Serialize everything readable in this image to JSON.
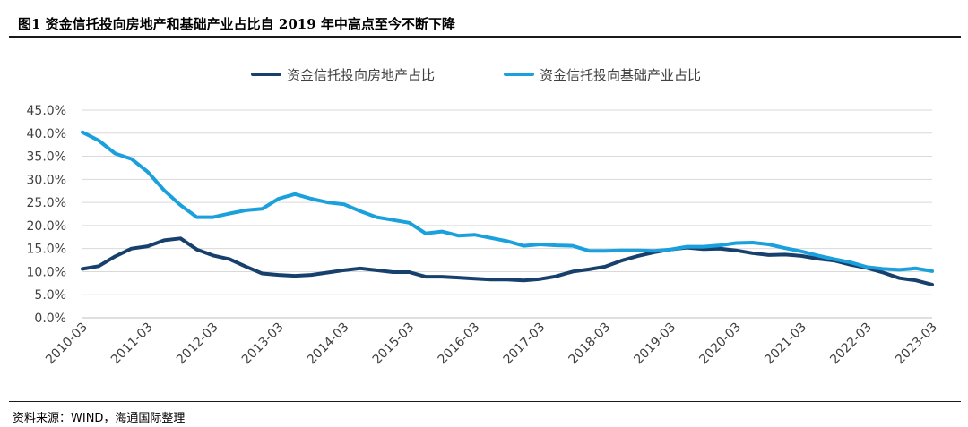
{
  "header": {
    "title": "图1  资金信托投向房地产和基础产业占比自 2019 年中高点至今不断下降"
  },
  "footer": {
    "source": "资料来源：WIND，海通国际整理"
  },
  "chart_data": {
    "type": "line",
    "title": "",
    "xlabel": "",
    "ylabel": "",
    "grid": true,
    "legend_position": "top",
    "ylim": [
      0,
      45
    ],
    "yticks": [
      "45.0%",
      "40.0%",
      "35.0%",
      "30.0%",
      "25.0%",
      "20.0%",
      "15.0%",
      "10.0%",
      "5.0%",
      "0.0%"
    ],
    "xticks": [
      "2010-03",
      "2011-03",
      "2012-03",
      "2013-03",
      "2014-03",
      "2015-03",
      "2016-03",
      "2017-03",
      "2018-03",
      "2019-03",
      "2020-03",
      "2021-03",
      "2022-03",
      "2023-03"
    ],
    "x": [
      "2010-03",
      "2010-06",
      "2010-09",
      "2010-12",
      "2011-03",
      "2011-06",
      "2011-09",
      "2011-12",
      "2012-03",
      "2012-06",
      "2012-09",
      "2012-12",
      "2013-03",
      "2013-06",
      "2013-09",
      "2013-12",
      "2014-03",
      "2014-06",
      "2014-09",
      "2014-12",
      "2015-03",
      "2015-06",
      "2015-09",
      "2015-12",
      "2016-03",
      "2016-06",
      "2016-09",
      "2016-12",
      "2017-03",
      "2017-06",
      "2017-09",
      "2017-12",
      "2018-03",
      "2018-06",
      "2018-09",
      "2018-12",
      "2019-03",
      "2019-06",
      "2019-09",
      "2019-12",
      "2020-03",
      "2020-06",
      "2020-09",
      "2020-12",
      "2021-03",
      "2021-06",
      "2021-09",
      "2021-12",
      "2022-03",
      "2022-06",
      "2022-09",
      "2022-12",
      "2023-03"
    ],
    "series": [
      {
        "name": "资金信托投向房地产占比",
        "color": "#17406d",
        "values": [
          10.6,
          11.2,
          13.3,
          15.0,
          15.5,
          16.8,
          17.2,
          14.8,
          13.5,
          12.7,
          11.1,
          9.6,
          9.3,
          9.1,
          9.3,
          9.8,
          10.3,
          10.7,
          10.3,
          9.9,
          9.9,
          8.9,
          8.9,
          8.7,
          8.5,
          8.3,
          8.3,
          8.1,
          8.4,
          9.0,
          10.0,
          10.5,
          11.1,
          12.4,
          13.4,
          14.2,
          14.8,
          15.2,
          14.9,
          15.0,
          14.6,
          14.0,
          13.6,
          13.7,
          13.4,
          12.8,
          12.4,
          11.5,
          10.8,
          9.8,
          8.6,
          8.1,
          7.2
        ]
      },
      {
        "name": "资金信托投向基础产业占比",
        "color": "#1aa0dd",
        "values": [
          40.2,
          38.4,
          35.6,
          34.4,
          31.6,
          27.6,
          24.4,
          21.8,
          21.8,
          22.6,
          23.3,
          23.6,
          25.8,
          26.8,
          25.8,
          25.0,
          24.6,
          23.1,
          21.8,
          21.2,
          20.6,
          18.3,
          18.7,
          17.8,
          18.0,
          17.3,
          16.6,
          15.6,
          15.9,
          15.7,
          15.6,
          14.5,
          14.5,
          14.6,
          14.6,
          14.5,
          14.8,
          15.4,
          15.4,
          15.7,
          16.2,
          16.3,
          15.9,
          15.1,
          14.4,
          13.5,
          12.7,
          12.0,
          11.0,
          10.6,
          10.4,
          10.7,
          10.1
        ]
      }
    ]
  }
}
